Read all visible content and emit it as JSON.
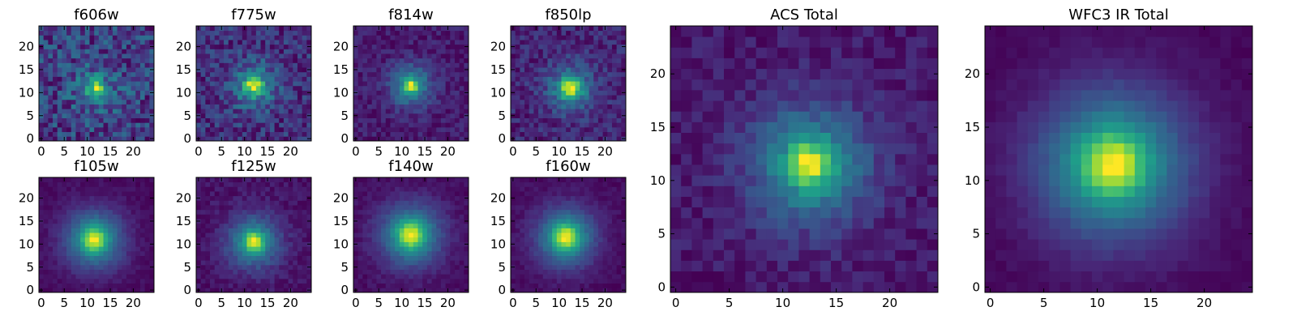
{
  "chart_data": [
    {
      "type": "heatmap",
      "title": "f606w",
      "grid_size": 25,
      "center": [
        12,
        11
      ],
      "peak_sigma": 1.3,
      "halo_sigma": 4.0,
      "peak_weight": 0.35,
      "halo_weight": 0.15,
      "noise": 0.28,
      "seed": 11,
      "xticks": [
        0,
        5,
        10,
        15,
        20
      ],
      "yticks": [
        0,
        5,
        10,
        15,
        20
      ],
      "xlim": [
        0,
        24
      ],
      "ylim": [
        0,
        24
      ]
    },
    {
      "type": "heatmap",
      "title": "f775w",
      "grid_size": 25,
      "center": [
        12,
        11.5
      ],
      "peak_sigma": 1.3,
      "halo_sigma": 3.5,
      "peak_weight": 0.35,
      "halo_weight": 0.25,
      "noise": 0.2,
      "seed": 23,
      "xticks": [
        0,
        5,
        10,
        15,
        20
      ],
      "yticks": [
        0,
        5,
        10,
        15,
        20
      ],
      "xlim": [
        0,
        24
      ],
      "ylim": [
        0,
        24
      ]
    },
    {
      "type": "heatmap",
      "title": "f814w",
      "grid_size": 25,
      "center": [
        12,
        11.5
      ],
      "peak_sigma": 1.0,
      "halo_sigma": 3.2,
      "peak_weight": 0.4,
      "halo_weight": 0.35,
      "noise": 0.13,
      "seed": 37,
      "xticks": [
        0,
        5,
        10,
        15,
        20
      ],
      "yticks": [
        0,
        5,
        10,
        15,
        20
      ],
      "xlim": [
        0,
        24
      ],
      "ylim": [
        0,
        24
      ]
    },
    {
      "type": "heatmap",
      "title": "f850lp",
      "grid_size": 25,
      "center": [
        12.5,
        11
      ],
      "peak_sigma": 1.5,
      "halo_sigma": 3.6,
      "peak_weight": 0.4,
      "halo_weight": 0.3,
      "noise": 0.17,
      "seed": 41,
      "xticks": [
        0,
        5,
        10,
        15,
        20
      ],
      "yticks": [
        0,
        5,
        10,
        15,
        20
      ],
      "xlim": [
        0,
        24
      ],
      "ylim": [
        0,
        24
      ]
    },
    {
      "type": "heatmap",
      "title": "f105w",
      "grid_size": 25,
      "center": [
        11.5,
        11
      ],
      "peak_sigma": 1.7,
      "halo_sigma": 4.5,
      "peak_weight": 0.4,
      "halo_weight": 0.45,
      "noise": 0.06,
      "seed": 53,
      "xticks": [
        0,
        5,
        10,
        15,
        20
      ],
      "yticks": [
        0,
        5,
        10,
        15,
        20
      ],
      "xlim": [
        0,
        24
      ],
      "ylim": [
        0,
        24
      ]
    },
    {
      "type": "heatmap",
      "title": "f125w",
      "grid_size": 25,
      "center": [
        12,
        10.5
      ],
      "peak_sigma": 1.4,
      "halo_sigma": 4.0,
      "peak_weight": 0.4,
      "halo_weight": 0.4,
      "noise": 0.09,
      "seed": 67,
      "xticks": [
        0,
        5,
        10,
        15,
        20
      ],
      "yticks": [
        0,
        5,
        10,
        15,
        20
      ],
      "xlim": [
        0,
        24
      ],
      "ylim": [
        0,
        24
      ]
    },
    {
      "type": "heatmap",
      "title": "f140w",
      "grid_size": 25,
      "center": [
        12,
        12
      ],
      "peak_sigma": 2.0,
      "halo_sigma": 4.8,
      "peak_weight": 0.4,
      "halo_weight": 0.45,
      "noise": 0.07,
      "seed": 71,
      "xticks": [
        0,
        5,
        10,
        15,
        20
      ],
      "yticks": [
        0,
        5,
        10,
        15,
        20
      ],
      "xlim": [
        0,
        24
      ],
      "ylim": [
        0,
        24
      ]
    },
    {
      "type": "heatmap",
      "title": "f160w",
      "grid_size": 25,
      "center": [
        11.5,
        11.5
      ],
      "peak_sigma": 1.8,
      "halo_sigma": 4.5,
      "peak_weight": 0.4,
      "halo_weight": 0.45,
      "noise": 0.06,
      "seed": 83,
      "xticks": [
        0,
        5,
        10,
        15,
        20
      ],
      "yticks": [
        0,
        5,
        10,
        15,
        20
      ],
      "xlim": [
        0,
        24
      ],
      "ylim": [
        0,
        24
      ]
    },
    {
      "type": "heatmap",
      "title": "ACS Total",
      "grid_size": 25,
      "center": [
        12.5,
        11.5
      ],
      "peak_sigma": 1.4,
      "halo_sigma": 4.0,
      "peak_weight": 0.4,
      "halo_weight": 0.35,
      "noise": 0.11,
      "seed": 97,
      "xticks": [
        0,
        5,
        10,
        15,
        20
      ],
      "yticks": [
        0,
        5,
        10,
        15,
        20
      ],
      "xlim": [
        0,
        24
      ],
      "ylim": [
        0,
        24
      ]
    },
    {
      "type": "heatmap",
      "title": "WFC3 IR Total",
      "grid_size": 25,
      "center": [
        11.5,
        11.5
      ],
      "peak_sigma": 1.9,
      "halo_sigma": 5.0,
      "peak_weight": 0.4,
      "halo_weight": 0.5,
      "noise": 0.04,
      "seed": 101,
      "xticks": [
        0,
        5,
        10,
        15,
        20
      ],
      "yticks": [
        0,
        5,
        10,
        15,
        20
      ],
      "xlim": [
        0,
        24
      ],
      "ylim": [
        0,
        24
      ]
    }
  ],
  "colormap": [
    "#440154",
    "#482878",
    "#3e4989",
    "#31688e",
    "#26828e",
    "#1f9e89",
    "#35b779",
    "#6ece58",
    "#b5de2b",
    "#fde725"
  ]
}
